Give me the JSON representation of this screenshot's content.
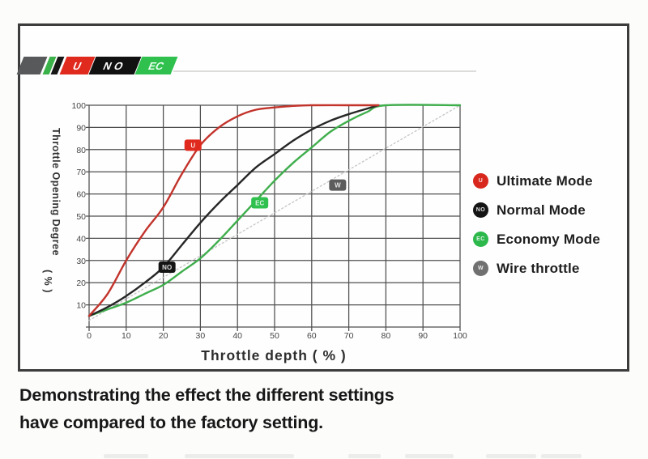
{
  "logo": {
    "badges": [
      {
        "kind": "bar",
        "label": "",
        "color": "#58595b",
        "text_color": "#ffffff"
      },
      {
        "kind": "slash",
        "label": "",
        "color": "#3bb14a",
        "text_color": "#ffffff"
      },
      {
        "kind": "slash",
        "label": "",
        "color": "#161616",
        "text_color": "#ffffff"
      },
      {
        "kind": "box",
        "label": "U",
        "color": "#e02a1e",
        "text_color": "#ffffff"
      },
      {
        "kind": "box",
        "label": "NO",
        "color": "#111111",
        "text_color": "#ffffff"
      },
      {
        "kind": "box",
        "label": "EC",
        "color": "#2fc04e",
        "text_color": "#eafff0"
      }
    ]
  },
  "chart_data": {
    "type": "line",
    "title": "",
    "xlabel": "Throttle depth ( % )",
    "ylabel": "Throttle Opening Degree ( % )",
    "ylabel_line1": "Throttle Opening Degree",
    "ylabel_line2": "( % )",
    "xlim": [
      0,
      100
    ],
    "ylim": [
      0,
      100
    ],
    "x_ticks": [
      0,
      10,
      20,
      30,
      40,
      50,
      60,
      70,
      80,
      90,
      100
    ],
    "y_ticks": [
      10,
      20,
      30,
      40,
      50,
      60,
      70,
      80,
      90,
      100
    ],
    "grid": true,
    "grid_color": "#4f4f4f",
    "legend_position": "right",
    "series": [
      {
        "name": "Wire throttle",
        "color": "#c4c4c4",
        "style": "dotted",
        "points": [
          [
            0,
            3
          ],
          [
            100,
            100
          ]
        ]
      },
      {
        "name": "Economy Mode",
        "color": "#3fae4c",
        "style": "solid",
        "points": [
          [
            0,
            5
          ],
          [
            5,
            8
          ],
          [
            10,
            11
          ],
          [
            15,
            15
          ],
          [
            20,
            19
          ],
          [
            25,
            25
          ],
          [
            30,
            31
          ],
          [
            35,
            39
          ],
          [
            40,
            48
          ],
          [
            45,
            57
          ],
          [
            50,
            66
          ],
          [
            55,
            74
          ],
          [
            60,
            81
          ],
          [
            65,
            88
          ],
          [
            70,
            93
          ],
          [
            75,
            97
          ],
          [
            80,
            100
          ],
          [
            100,
            100
          ]
        ]
      },
      {
        "name": "Normal Mode",
        "color": "#262626",
        "style": "solid",
        "points": [
          [
            0,
            5
          ],
          [
            5,
            9
          ],
          [
            10,
            14
          ],
          [
            15,
            20
          ],
          [
            20,
            27
          ],
          [
            25,
            37
          ],
          [
            30,
            47
          ],
          [
            35,
            56
          ],
          [
            40,
            64
          ],
          [
            45,
            72
          ],
          [
            50,
            78
          ],
          [
            55,
            84
          ],
          [
            60,
            89
          ],
          [
            65,
            93
          ],
          [
            70,
            96
          ],
          [
            75,
            98.5
          ],
          [
            78,
            100
          ]
        ]
      },
      {
        "name": "Ultimate Mode",
        "color": "#c2332b",
        "style": "solid",
        "points": [
          [
            0,
            5
          ],
          [
            5,
            15
          ],
          [
            10,
            30
          ],
          [
            15,
            43
          ],
          [
            20,
            54
          ],
          [
            25,
            69
          ],
          [
            30,
            82
          ],
          [
            35,
            90
          ],
          [
            40,
            95
          ],
          [
            45,
            98
          ],
          [
            50,
            99
          ],
          [
            55,
            99.7
          ],
          [
            60,
            100
          ],
          [
            70,
            100
          ],
          [
            78,
            100
          ]
        ]
      }
    ],
    "curve_labels": [
      {
        "text": "U",
        "x": 28,
        "y": 82,
        "color": "#e02a1e"
      },
      {
        "text": "NO",
        "x": 21,
        "y": 27,
        "color": "#141414"
      },
      {
        "text": "EC",
        "x": 46,
        "y": 56,
        "color": "#2fc04e"
      },
      {
        "text": "W",
        "x": 67,
        "y": 64,
        "color": "#5c5c5c"
      }
    ]
  },
  "legend": {
    "items": [
      {
        "badge": "U",
        "color": "#d8271d",
        "label": "Ultimate Mode"
      },
      {
        "badge": "NO",
        "color": "#141414",
        "label": "Normal Mode"
      },
      {
        "badge": "EC",
        "color": "#2db84c",
        "label": "Economy Mode"
      },
      {
        "badge": "W",
        "color": "#707070",
        "label": "Wire throttle"
      }
    ]
  },
  "caption": {
    "line1": "Demonstrating the effect the different settings",
    "line2": "have compared to the factory setting."
  }
}
